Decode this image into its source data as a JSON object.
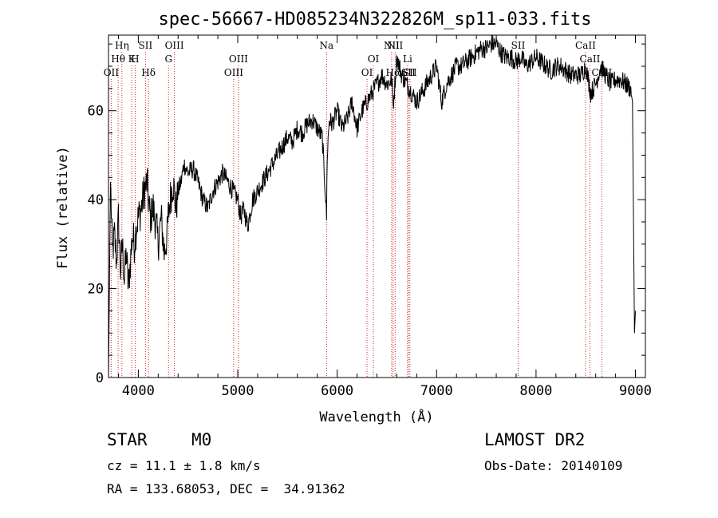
{
  "chart_data": {
    "type": "line",
    "title": "spec-56667-HD085234N322826M_sp11-033.fits",
    "xlabel": "Wavelength (Å)",
    "ylabel": "Flux (relative)",
    "xlim": [
      3700,
      9100
    ],
    "ylim": [
      0,
      77
    ],
    "xticks": [
      4000,
      5000,
      6000,
      7000,
      8000,
      9000
    ],
    "yticks": [
      0,
      20,
      40,
      60
    ],
    "series": [
      {
        "name": "flux",
        "x": [
          3700,
          3720,
          3740,
          3760,
          3780,
          3800,
          3820,
          3840,
          3860,
          3880,
          3900,
          3920,
          3940,
          3960,
          3980,
          4000,
          4030,
          4060,
          4090,
          4100,
          4120,
          4150,
          4180,
          4200,
          4230,
          4260,
          4290,
          4300,
          4320,
          4350,
          4380,
          4400,
          4430,
          4460,
          4500,
          4550,
          4600,
          4650,
          4700,
          4750,
          4800,
          4850,
          4900,
          4950,
          5000,
          5030,
          5060,
          5100,
          5150,
          5200,
          5250,
          5300,
          5350,
          5400,
          5450,
          5500,
          5550,
          5600,
          5650,
          5700,
          5750,
          5800,
          5850,
          5880,
          5893,
          5900,
          5920,
          5950,
          6000,
          6050,
          6100,
          6150,
          6200,
          6250,
          6300,
          6350,
          6400,
          6450,
          6500,
          6550,
          6563,
          6600,
          6650,
          6700,
          6750,
          6800,
          6850,
          6900,
          6950,
          7000,
          7050,
          7100,
          7150,
          7200,
          7250,
          7300,
          7350,
          7400,
          7450,
          7500,
          7550,
          7600,
          7650,
          7700,
          7750,
          7800,
          7850,
          7900,
          7950,
          8000,
          8050,
          8100,
          8150,
          8200,
          8250,
          8300,
          8350,
          8400,
          8450,
          8500,
          8550,
          8600,
          8650,
          8700,
          8750,
          8800,
          8850,
          8900,
          8950,
          8970,
          8990,
          9000
        ],
        "values": [
          0,
          44,
          28,
          32,
          26,
          36,
          24,
          30,
          22,
          28,
          20,
          26,
          32,
          30,
          34,
          36,
          38,
          42,
          44,
          40,
          36,
          38,
          34,
          30,
          36,
          28,
          32,
          36,
          40,
          44,
          38,
          42,
          44,
          48,
          46,
          47,
          44,
          40,
          38,
          42,
          44,
          46,
          44,
          42,
          40,
          36,
          38,
          34,
          40,
          42,
          44,
          46,
          48,
          50,
          52,
          54,
          53,
          56,
          55,
          57,
          58,
          56,
          54,
          42,
          36,
          50,
          58,
          57,
          60,
          56,
          58,
          62,
          56,
          60,
          62,
          64,
          66,
          68,
          66,
          67,
          61,
          72,
          68,
          66,
          64,
          62,
          64,
          66,
          68,
          70,
          62,
          66,
          68,
          70,
          70,
          71,
          72,
          73,
          74,
          74,
          75,
          75,
          73,
          72,
          72,
          71,
          72,
          70,
          71,
          72,
          71,
          70,
          69,
          70,
          70,
          69,
          68,
          68,
          68,
          70,
          64,
          66,
          70,
          68,
          66,
          67,
          67,
          66,
          65,
          62,
          10,
          15
        ]
      }
    ],
    "emission_lines": [
      {
        "label": "OII",
        "x": 3727,
        "row": 3
      },
      {
        "label": "Hθ",
        "x": 3797,
        "row": 2
      },
      {
        "label": "Hη",
        "x": 3835,
        "row": 1
      },
      {
        "label": "K",
        "x": 3934,
        "row": 2
      },
      {
        "label": "H",
        "x": 3968,
        "row": 2
      },
      {
        "label": "SII",
        "x": 4072,
        "row": 1
      },
      {
        "label": "Hδ",
        "x": 4102,
        "row": 3
      },
      {
        "label": "G",
        "x": 4304,
        "row": 2
      },
      {
        "label": "OIII",
        "x": 4363,
        "row": 1
      },
      {
        "label": "OIII",
        "x": 4959,
        "row": 3
      },
      {
        "label": "OIII",
        "x": 5007,
        "row": 2
      },
      {
        "label": "Na",
        "x": 5893,
        "row": 1
      },
      {
        "label": "OI",
        "x": 6300,
        "row": 3
      },
      {
        "label": "OI",
        "x": 6364,
        "row": 2
      },
      {
        "label": "NII",
        "x": 6548,
        "row": 1
      },
      {
        "label": "Hα",
        "x": 6563,
        "row": 3
      },
      {
        "label": "NII",
        "x": 6583,
        "row": 1
      },
      {
        "label": "Li",
        "x": 6708,
        "row": 2
      },
      {
        "label": "SII",
        "x": 6716,
        "row": 3
      },
      {
        "label": "SII",
        "x": 6731,
        "row": 3
      },
      {
        "label": "SII",
        "x": 7820,
        "row": 1
      },
      {
        "label": "CaII",
        "x": 8498,
        "row": 1
      },
      {
        "label": "CaII",
        "x": 8542,
        "row": 2
      },
      {
        "label": "CaII",
        "x": 8662,
        "row": 3
      }
    ],
    "colors": {
      "spectrum": "#000000",
      "lines": "#cc2222"
    }
  },
  "info": {
    "class": "STAR",
    "subclass": "M0",
    "survey": "LAMOST DR2",
    "cz": "cz = 11.1 ± 1.8 km/s",
    "obs_date": "Obs-Date: 20140109",
    "coords": "RA = 133.68053, DEC =  34.91362"
  }
}
